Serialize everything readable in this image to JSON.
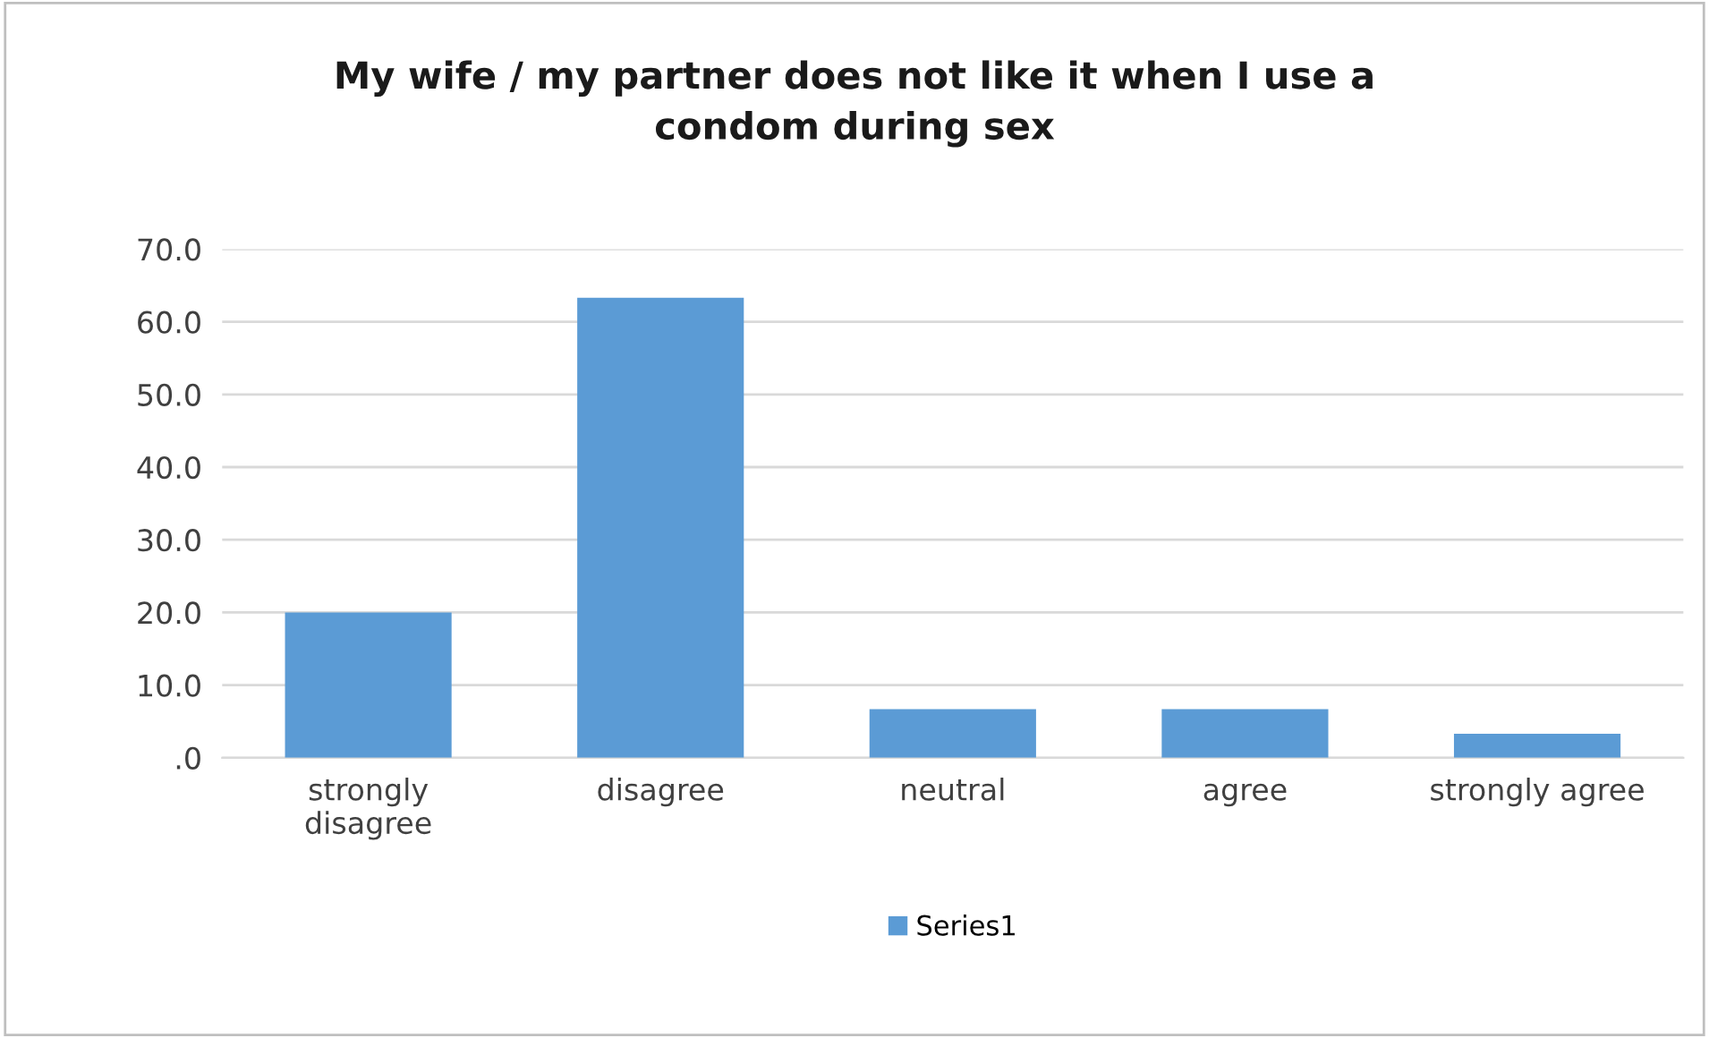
{
  "chart_data": {
    "type": "bar",
    "title": "My wife / my partner does not like it when I use a\ncondom during sex",
    "categories": [
      "strongly\ndisagree",
      "disagree",
      "neutral",
      "agree",
      "strongly agree"
    ],
    "series": [
      {
        "name": "Series1",
        "color": "#5b9bd5",
        "values": [
          20.0,
          63.3,
          6.7,
          6.7,
          3.3
        ]
      }
    ],
    "ylim": [
      0,
      70
    ],
    "yticks": [
      {
        "value": 0,
        "label": ".0"
      },
      {
        "value": 10,
        "label": "10.0"
      },
      {
        "value": 20,
        "label": "20.0"
      },
      {
        "value": 30,
        "label": "30.0"
      },
      {
        "value": 40,
        "label": "40.0"
      },
      {
        "value": 50,
        "label": "50.0"
      },
      {
        "value": 60,
        "label": "60.0"
      },
      {
        "value": 70,
        "label": "70.0"
      }
    ],
    "grid": "y",
    "legend": "bottom"
  }
}
